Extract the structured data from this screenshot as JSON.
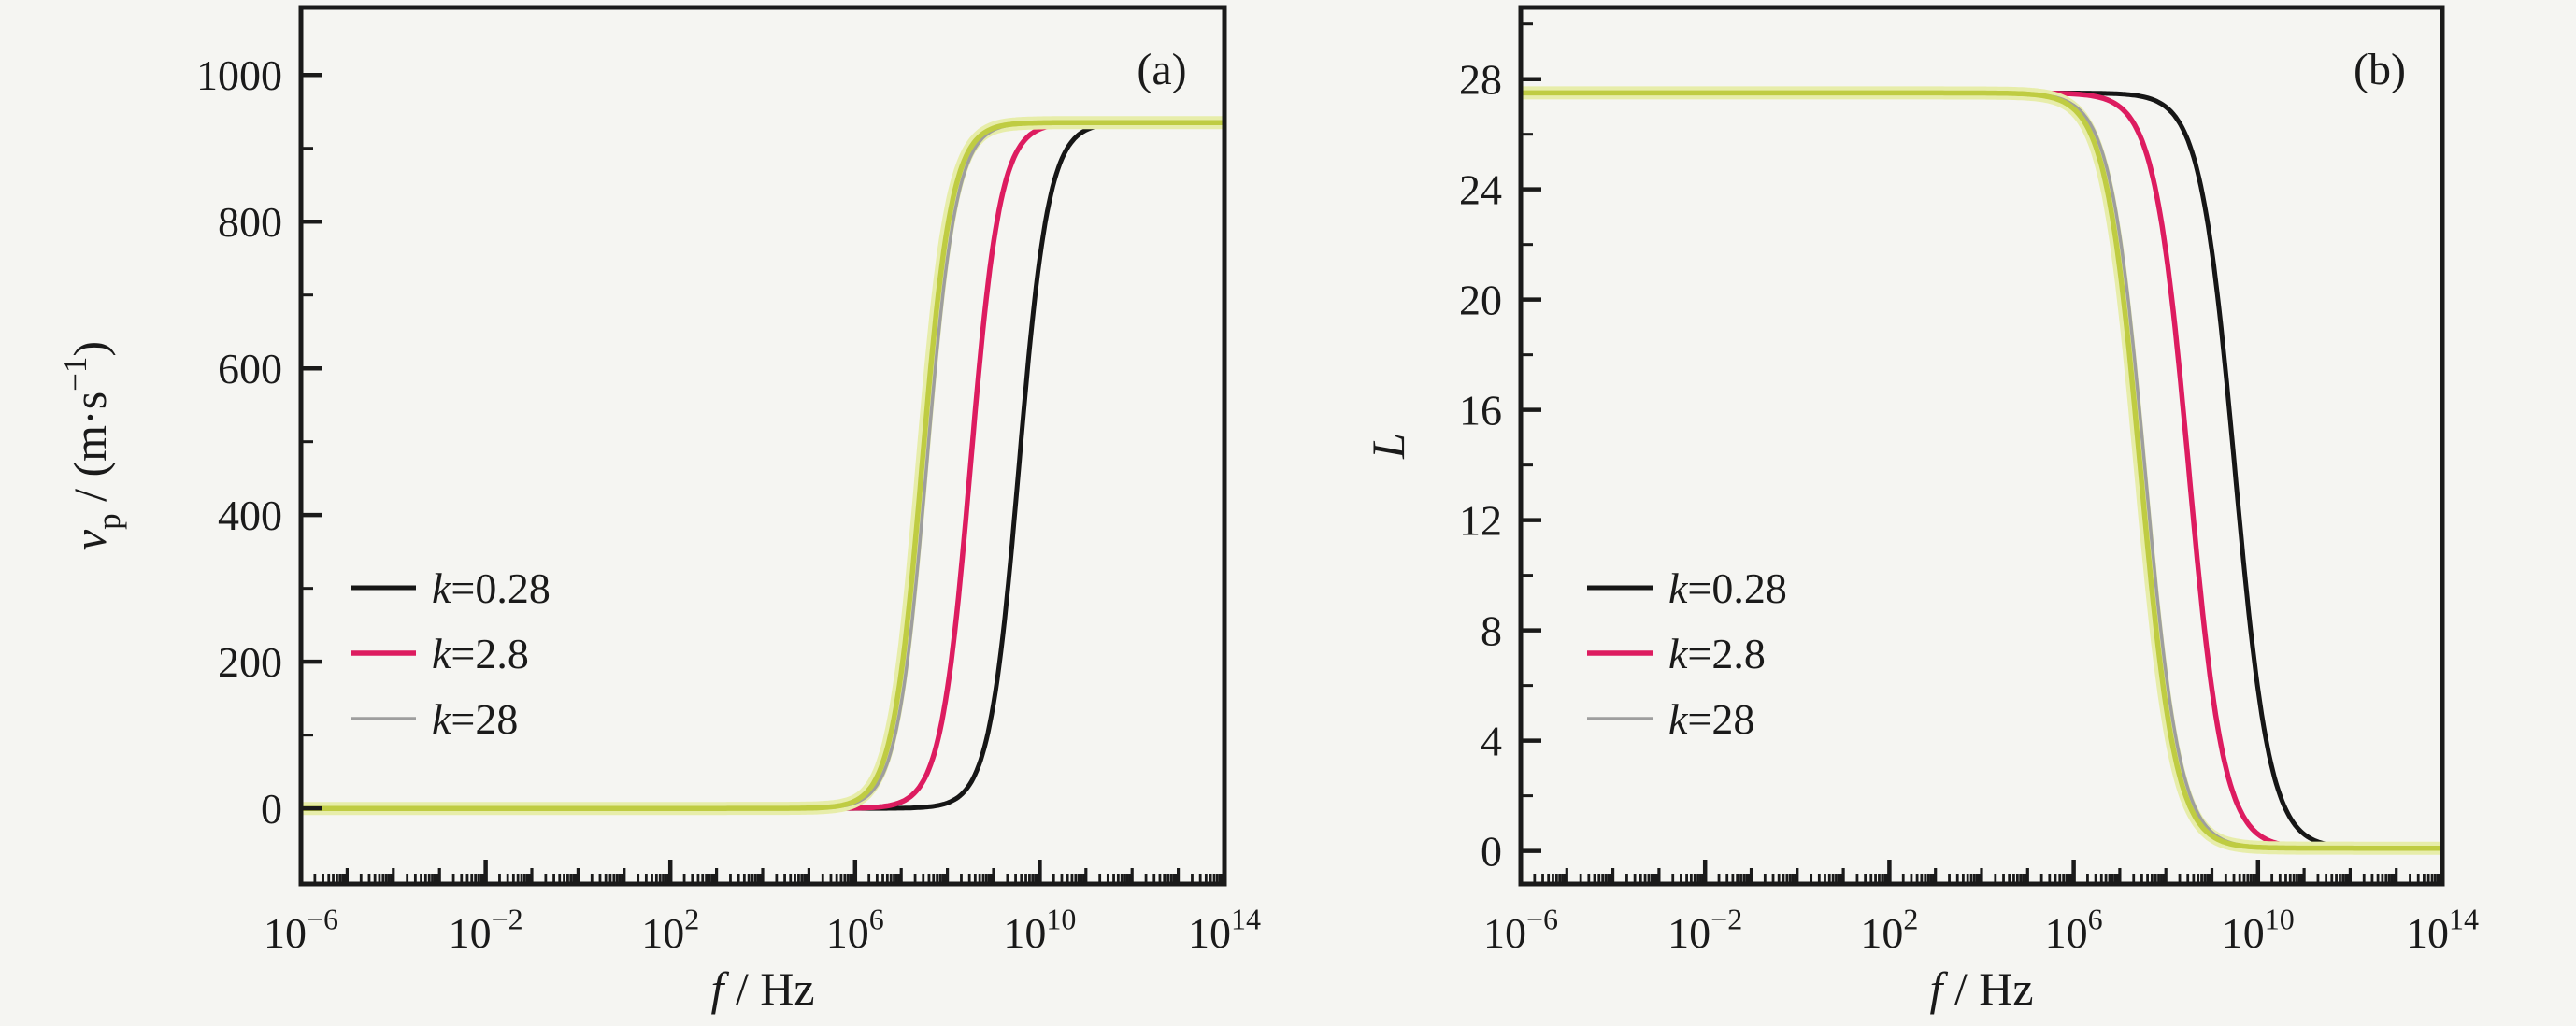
{
  "figure": {
    "background_color": "#f5f5f2",
    "axis_color": "#1a1a1a",
    "text_color": "#1a1a1a"
  },
  "chart_data": [
    {
      "panel_id": "a",
      "type": "line",
      "panel_label": "(a)",
      "xscale": "log",
      "xlim_log10": [
        -6,
        14
      ],
      "x_major_tick_exponents": [
        -6,
        -2,
        2,
        6,
        10,
        14
      ],
      "x_tick_base": "10",
      "x_tick_labels": [
        "10⁻⁶",
        "10⁻²",
        "10²",
        "10⁶",
        "10¹⁰",
        "10¹⁴"
      ],
      "xlabel_text": "f / Hz",
      "xlabel_parts": [
        {
          "t": "f",
          "style": "italic"
        },
        {
          "t": " / Hz",
          "style": "normal"
        }
      ],
      "ylim": [
        -103,
        1092
      ],
      "y_major_ticks": [
        0,
        200,
        400,
        600,
        800,
        1000
      ],
      "y_minor_ticks": [
        100,
        300,
        500,
        700,
        900,
        1100
      ],
      "y_tick_labels": [
        "0",
        "200",
        "400",
        "600",
        "800",
        "1000"
      ],
      "ylabel_text": "vₚ / (m·s⁻¹)",
      "ylabel_parts": [
        {
          "t": "v",
          "style": "italic"
        },
        {
          "t": "p",
          "style": "sub"
        },
        {
          "t": " / (m·s",
          "style": "normal"
        },
        {
          "t": "−1",
          "style": "sup"
        },
        {
          "t": ")",
          "style": "normal"
        }
      ],
      "legend_position": "center-left",
      "grid": false,
      "samples_log10f": [
        -6,
        -5,
        -4,
        -3,
        -2,
        -1,
        0,
        1,
        2,
        3,
        4,
        5,
        6,
        7,
        8,
        9,
        10,
        11,
        12,
        13,
        14
      ],
      "series": [
        {
          "name": "k=0.28",
          "label_parts": [
            {
              "t": "k",
              "style": "italic"
            },
            {
              "t": "=0.28",
              "style": "normal"
            }
          ],
          "color": "#161616",
          "line_width": 5,
          "in_legend": true,
          "order": 1,
          "model": {
            "shape": "logistic-rising",
            "low": 0,
            "high": 935,
            "mid_log10": 9.55,
            "steepness_per_decade": 1.35
          },
          "values": [
            0,
            0,
            0,
            0,
            0,
            0,
            0,
            0,
            0,
            0,
            0,
            0,
            0,
            0,
            8,
            143,
            750,
            925,
            934,
            935,
            935
          ]
        },
        {
          "name": "k=2.8",
          "label_parts": [
            {
              "t": "k",
              "style": "italic"
            },
            {
              "t": "=2.8",
              "style": "normal"
            }
          ],
          "color": "#dd1c60",
          "line_width": 5.5,
          "in_legend": true,
          "order": 2,
          "model": {
            "shape": "logistic-rising",
            "low": 0,
            "high": 935,
            "mid_log10": 8.5,
            "steepness_per_decade": 1.35
          },
          "values": [
            0,
            0,
            0,
            0,
            0,
            0,
            0,
            0,
            0,
            0,
            0,
            0,
            0,
            9,
            163,
            772,
            926,
            934,
            935,
            935,
            935
          ]
        },
        {
          "name": "k=28",
          "label_parts": [
            {
              "t": "k",
              "style": "italic"
            },
            {
              "t": "=28",
              "style": "normal"
            }
          ],
          "color": "#9e9e9e",
          "line_width": 3.5,
          "in_legend": true,
          "order": 4,
          "model": {
            "shape": "logistic-rising",
            "low": 0,
            "high": 935,
            "mid_log10": 7.55,
            "steepness_per_decade": 1.35
          },
          "values": [
            0,
            0,
            0,
            0,
            0,
            0,
            0,
            0,
            0,
            0,
            0,
            0,
            8,
            143,
            750,
            925,
            934,
            935,
            935,
            935,
            935
          ]
        },
        {
          "name": "unlabeled-yellow-green (coincides with k=28)",
          "label_parts": [],
          "color": "#bfcc42",
          "line_width": 5.5,
          "in_legend": false,
          "order": 5,
          "halo": {
            "color": "#e7edaa",
            "line_width": 14,
            "order": 3
          },
          "model": {
            "shape": "logistic-rising",
            "low": 0,
            "high": 935,
            "mid_log10": 7.45,
            "steepness_per_decade": 1.35
          },
          "values": [
            0,
            0,
            0,
            0,
            0,
            0,
            0,
            0,
            0,
            0,
            0,
            0,
            10,
            184,
            769,
            926,
            934,
            935,
            935,
            935,
            935
          ]
        }
      ]
    },
    {
      "panel_id": "b",
      "type": "line",
      "panel_label": "(b)",
      "xscale": "log",
      "xlim_log10": [
        -6,
        14
      ],
      "x_major_tick_exponents": [
        -6,
        -2,
        2,
        6,
        10,
        14
      ],
      "x_tick_base": "10",
      "x_tick_labels": [
        "10⁻⁶",
        "10⁻²",
        "10²",
        "10⁶",
        "10¹⁰",
        "10¹⁴"
      ],
      "xlabel_text": "f / Hz",
      "xlabel_parts": [
        {
          "t": "f",
          "style": "italic"
        },
        {
          "t": " / Hz",
          "style": "normal"
        }
      ],
      "ylim": [
        -1.2,
        30.6
      ],
      "y_major_ticks": [
        0,
        4,
        8,
        12,
        16,
        20,
        24,
        28
      ],
      "y_minor_ticks": [
        2,
        6,
        10,
        14,
        18,
        22,
        26,
        30
      ],
      "y_tick_labels": [
        "0",
        "4",
        "8",
        "12",
        "16",
        "20",
        "24",
        "28"
      ],
      "ylabel_text": "L",
      "ylabel_parts": [
        {
          "t": "L",
          "style": "italic"
        }
      ],
      "legend_position": "center-left",
      "grid": false,
      "samples_log10f": [
        -6,
        -5,
        -4,
        -3,
        -2,
        -1,
        0,
        1,
        2,
        3,
        4,
        5,
        6,
        7,
        8,
        9,
        10,
        11,
        12,
        13,
        14
      ],
      "series": [
        {
          "name": "k=0.28",
          "label_parts": [
            {
              "t": "k",
              "style": "italic"
            },
            {
              "t": "=0.28",
              "style": "normal"
            }
          ],
          "color": "#161616",
          "line_width": 5,
          "in_legend": true,
          "order": 1,
          "model": {
            "shape": "logistic-falling",
            "low": 0.1,
            "high": 27.5,
            "mid_log10": 9.5,
            "steepness_per_decade": 1.15
          },
          "values": [
            27.5,
            27.5,
            27.5,
            27.5,
            27.5,
            27.5,
            27.5,
            27.5,
            27.5,
            27.5,
            27.5,
            27.5,
            27.5,
            27.5,
            27.0,
            21.7,
            5.9,
            0.6,
            0.1,
            0.1,
            0.1
          ]
        },
        {
          "name": "k=2.8",
          "label_parts": [
            {
              "t": "k",
              "style": "italic"
            },
            {
              "t": "=2.8",
              "style": "normal"
            }
          ],
          "color": "#dd1c60",
          "line_width": 5.5,
          "in_legend": true,
          "order": 2,
          "model": {
            "shape": "logistic-falling",
            "low": 0.1,
            "high": 27.5,
            "mid_log10": 8.5,
            "steepness_per_decade": 1.15
          },
          "values": [
            27.5,
            27.5,
            27.5,
            27.5,
            27.5,
            27.5,
            27.5,
            27.5,
            27.5,
            27.5,
            27.5,
            27.5,
            27.5,
            27.0,
            21.7,
            5.9,
            0.6,
            0.1,
            0.1,
            0.1,
            0.1
          ]
        },
        {
          "name": "k=28",
          "label_parts": [
            {
              "t": "k",
              "style": "italic"
            },
            {
              "t": "=28",
              "style": "normal"
            }
          ],
          "color": "#9e9e9e",
          "line_width": 3.5,
          "in_legend": true,
          "order": 4,
          "model": {
            "shape": "logistic-falling",
            "low": 0.1,
            "high": 27.5,
            "mid_log10": 7.55,
            "steepness_per_decade": 1.15
          },
          "values": [
            27.5,
            27.5,
            27.5,
            27.5,
            27.5,
            27.5,
            27.5,
            27.5,
            27.5,
            27.5,
            27.5,
            27.5,
            27.1,
            22.3,
            6.5,
            0.7,
            0.1,
            0.1,
            0.1,
            0.1,
            0.1
          ]
        },
        {
          "name": "unlabeled-yellow-green (coincides with k=28)",
          "label_parts": [],
          "color": "#bfcc42",
          "line_width": 5.5,
          "in_legend": false,
          "order": 5,
          "halo": {
            "color": "#e7edaa",
            "line_width": 14,
            "order": 3
          },
          "model": {
            "shape": "logistic-falling",
            "low": 0.1,
            "high": 27.5,
            "mid_log10": 7.45,
            "steepness_per_decade": 1.15
          },
          "values": [
            27.5,
            27.5,
            27.5,
            27.5,
            27.5,
            27.5,
            27.5,
            27.5,
            27.5,
            27.5,
            27.5,
            27.5,
            27.0,
            21.6,
            6.0,
            0.6,
            0.1,
            0.1,
            0.1,
            0.1,
            0.1
          ]
        }
      ]
    }
  ]
}
